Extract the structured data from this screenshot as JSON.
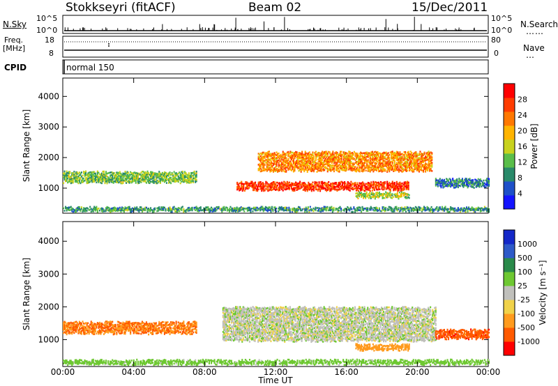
{
  "header": {
    "station": "Stokkseyri (fitACF)",
    "beam": "Beam 02",
    "date": "15/Dec/2011"
  },
  "labels": {
    "nsky": "N.Sky",
    "nsearch": "N.Search",
    "freq": "Freq.",
    "mhz": "[MHz]",
    "nave": "Nave",
    "cpid": "CPID",
    "cpid_value": "normal 150",
    "nsky_top": "10^5",
    "nsky_bottom": "10^0",
    "nsearch_top": "10^5",
    "nsearch_bottom": "10^0",
    "freq_top": "18",
    "freq_bottom": "8",
    "nave_top": "80",
    "nave_bottom": "0",
    "power_title": "Power [dB]",
    "velocity_title": "Velocity [m s⁻¹]",
    "slant_range": "Slant Range [km]",
    "time_ut": "Time UT"
  },
  "chart_data": [
    {
      "type": "heatmap",
      "name": "Power",
      "xlabel": "Time UT",
      "ylabel": "Slant Range [km]",
      "xlim": [
        0,
        24
      ],
      "ylim": [
        180,
        4600
      ],
      "x_ticks": [
        "00:00",
        "04:00",
        "08:00",
        "12:00",
        "16:00",
        "20:00",
        "00:00"
      ],
      "y_ticks": [
        1000,
        2000,
        3000,
        4000
      ],
      "colorbar": {
        "label": "Power [dB]",
        "ticks": [
          4,
          8,
          12,
          16,
          20,
          24,
          28
        ],
        "range": [
          0,
          32
        ]
      },
      "echo_regions": [
        {
          "t_start": 0.0,
          "t_end": 7.5,
          "range_center_km": 1400,
          "thickness_km": 350,
          "typical_dB": 13
        },
        {
          "t_start": 9.8,
          "t_end": 19.5,
          "range_center_km": 1100,
          "thickness_km": 250,
          "typical_dB": 27
        },
        {
          "t_start": 11.0,
          "t_end": 20.8,
          "range_center_km": 1900,
          "thickness_km": 600,
          "typical_dB": 22
        },
        {
          "t_start": 16.5,
          "t_end": 19.5,
          "range_center_km": 800,
          "thickness_km": 150,
          "typical_dB": 15
        },
        {
          "t_start": 21.0,
          "t_end": 24.0,
          "range_center_km": 1200,
          "thickness_km": 250,
          "typical_dB": 8
        },
        {
          "t_start": 0.0,
          "t_end": 24.0,
          "range_center_km": 350,
          "thickness_km": 120,
          "typical_dB": 10
        }
      ]
    },
    {
      "type": "heatmap",
      "name": "Velocity",
      "xlabel": "Time UT",
      "ylabel": "Slant Range [km]",
      "xlim": [
        0,
        24
      ],
      "ylim": [
        180,
        4600
      ],
      "x_ticks": [
        "00:00",
        "04:00",
        "08:00",
        "12:00",
        "16:00",
        "20:00",
        "00:00"
      ],
      "y_ticks": [
        1000,
        2000,
        3000,
        4000
      ],
      "colorbar": {
        "label": "Velocity [m s⁻¹]",
        "ticks": [
          1000,
          500,
          100,
          25,
          -25,
          -100,
          -500,
          -1000
        ]
      },
      "echo_regions": [
        {
          "t_start": 0.0,
          "t_end": 7.5,
          "range_center_km": 1400,
          "thickness_km": 350,
          "typical_velocity": -300
        },
        {
          "t_start": 9.0,
          "t_end": 21.0,
          "range_center_km": 1500,
          "thickness_km": 1000,
          "typical_velocity": 0
        },
        {
          "t_start": 16.5,
          "t_end": 19.5,
          "range_center_km": 800,
          "thickness_km": 150,
          "typical_velocity": -150
        },
        {
          "t_start": 21.0,
          "t_end": 24.0,
          "range_center_km": 1200,
          "thickness_km": 250,
          "typical_velocity": -400
        },
        {
          "t_start": 0.0,
          "t_end": 24.0,
          "range_center_km": 350,
          "thickness_km": 120,
          "typical_velocity": 60
        }
      ]
    }
  ],
  "colors": {
    "power_scale": [
      "#1414ff",
      "#1e50c8",
      "#2a8a6a",
      "#5abe4a",
      "#c8d21e",
      "#ffb400",
      "#ff7800",
      "#ff3c00",
      "#ff0000"
    ],
    "velocity_pos": [
      "#1428c8",
      "#2e5ac8",
      "#2a8a4a",
      "#6ec832"
    ],
    "velocity_ground": "#c0c0bc",
    "velocity_neg": [
      "#f0d24a",
      "#ff9b1e",
      "#ff5a00",
      "#ff0000"
    ]
  }
}
